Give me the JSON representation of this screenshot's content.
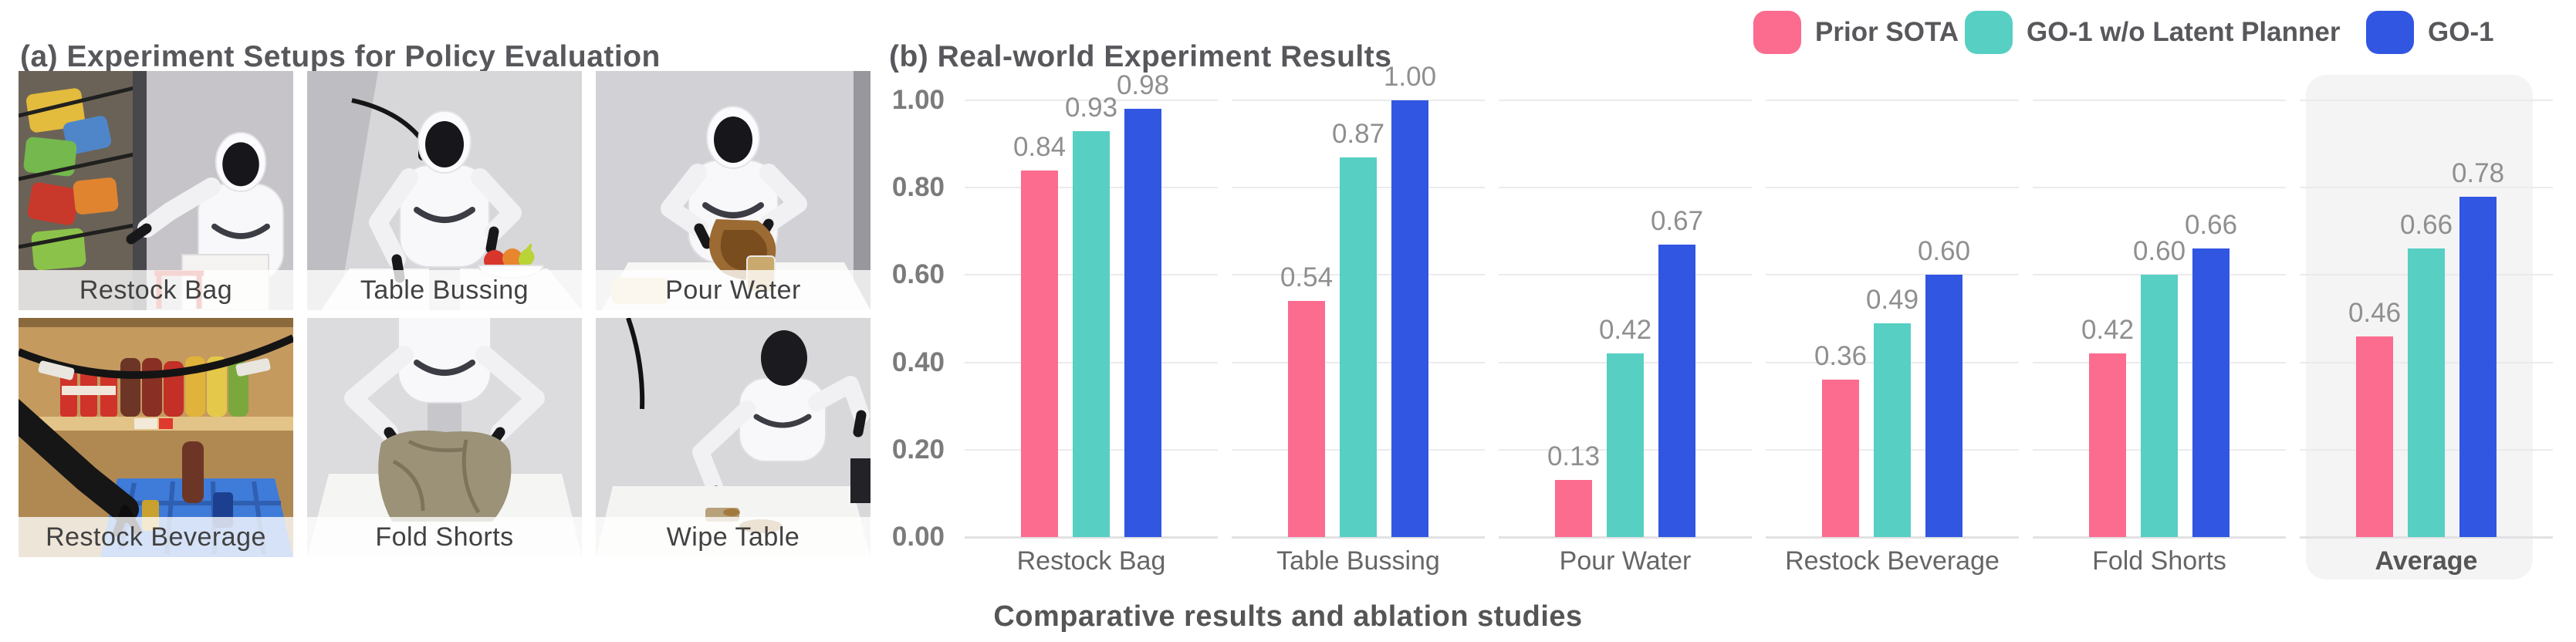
{
  "panel_a": {
    "title": "(a) Experiment Setups for Policy Evaluation",
    "photos": [
      {
        "label": "Restock Bag",
        "scene": "restock-bag"
      },
      {
        "label": "Table Bussing",
        "scene": "table-bussing"
      },
      {
        "label": "Pour Water",
        "scene": "pour-water"
      },
      {
        "label": "Restock Beverage",
        "scene": "restock-beverage"
      },
      {
        "label": "Fold Shorts",
        "scene": "fold-shorts"
      },
      {
        "label": "Wipe Table",
        "scene": "wipe-table"
      }
    ]
  },
  "panel_b": {
    "title": "(b) Real-world Experiment Results",
    "caption": "Comparative results and ablation studies"
  },
  "colors": {
    "prior_sota": "#FB6C8F",
    "go1_wo_latent_planner": "#57CFC3",
    "go1": "#3156E2",
    "highlight_bg": "#F4F4F5",
    "gridline": "#EBEBED",
    "value_label": "#8F8F8F"
  },
  "chart_data": {
    "type": "bar",
    "title": "(b) Real-world Experiment Results",
    "categories": [
      "Restock Bag",
      "Table Bussing",
      "Pour Water",
      "Restock Beverage",
      "Fold Shorts",
      "Average"
    ],
    "series": [
      {
        "name": "Prior SOTA",
        "color": "#FB6C8F",
        "values": [
          0.84,
          0.54,
          0.13,
          0.36,
          0.42,
          0.46
        ]
      },
      {
        "name": "GO-1 w/o Latent Planner",
        "color": "#57CFC3",
        "values": [
          0.93,
          0.87,
          0.42,
          0.49,
          0.6,
          0.66
        ]
      },
      {
        "name": "GO-1",
        "color": "#3156E2",
        "values": [
          0.98,
          1.0,
          0.67,
          0.6,
          0.66,
          0.78
        ]
      }
    ],
    "value_labels": [
      [
        "0.84",
        "0.54",
        "0.13",
        "0.36",
        "0.42",
        "0.46"
      ],
      [
        "0.93",
        "0.87",
        "0.42",
        "0.49",
        "0.60",
        "0.66"
      ],
      [
        "0.98",
        "1.00",
        "0.67",
        "0.60",
        "0.66",
        "0.78"
      ]
    ],
    "yticks": [
      "1.00",
      "0.80",
      "0.60",
      "0.40",
      "0.20",
      "0.00"
    ],
    "ylim": [
      0,
      1
    ],
    "grid": true,
    "legend_position": "top-right",
    "highlight_category": "Average",
    "xlabel": "",
    "ylabel": ""
  }
}
